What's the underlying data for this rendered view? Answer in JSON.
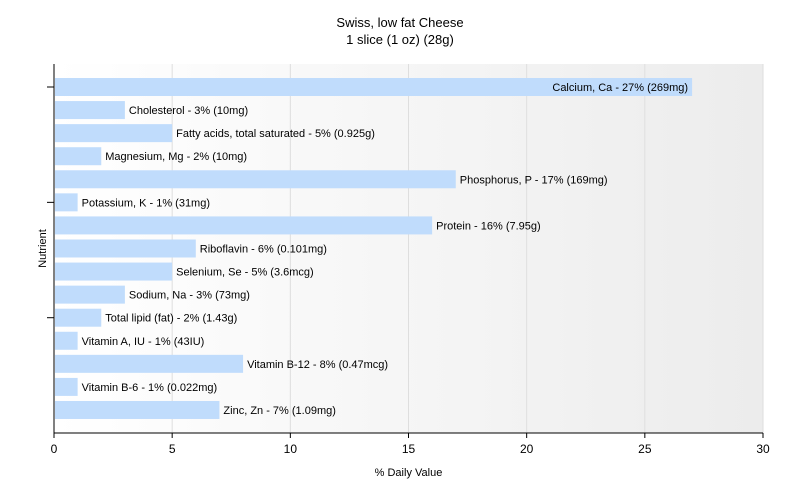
{
  "chart_data": {
    "type": "bar",
    "horizontal": true,
    "title": "Swiss, low fat Cheese",
    "subtitle": "1 slice (1 oz) (28g)",
    "xlabel": "% Daily Value",
    "ylabel": "Nutrient",
    "xlim": [
      0,
      30
    ],
    "xticks": [
      0,
      5,
      10,
      15,
      20,
      25,
      30
    ],
    "grid": true,
    "bars": [
      {
        "label": "Calcium, Ca - 27% (269mg)",
        "value": 27
      },
      {
        "label": "Cholesterol - 3% (10mg)",
        "value": 3
      },
      {
        "label": "Fatty acids, total saturated - 5% (0.925g)",
        "value": 5
      },
      {
        "label": "Magnesium, Mg - 2% (10mg)",
        "value": 2
      },
      {
        "label": "Phosphorus, P - 17% (169mg)",
        "value": 17
      },
      {
        "label": "Potassium, K - 1% (31mg)",
        "value": 1
      },
      {
        "label": "Protein - 16% (7.95g)",
        "value": 16
      },
      {
        "label": "Riboflavin - 6% (0.101mg)",
        "value": 6
      },
      {
        "label": "Selenium, Se - 5% (3.6mcg)",
        "value": 5
      },
      {
        "label": "Sodium, Na - 3% (73mg)",
        "value": 3
      },
      {
        "label": "Total lipid (fat) - 2% (1.43g)",
        "value": 2
      },
      {
        "label": "Vitamin A, IU - 1% (43IU)",
        "value": 1
      },
      {
        "label": "Vitamin B-12 - 8% (0.47mcg)",
        "value": 8
      },
      {
        "label": "Vitamin B-6 - 1% (0.022mg)",
        "value": 1
      },
      {
        "label": "Zinc, Zn - 7% (1.09mg)",
        "value": 7
      }
    ],
    "colors": {
      "bar": "#c0dcfc",
      "grid": "#dedede",
      "axis": "#000000",
      "plot_bg_start": "#ffffff",
      "plot_bg_end": "#ececec"
    }
  }
}
